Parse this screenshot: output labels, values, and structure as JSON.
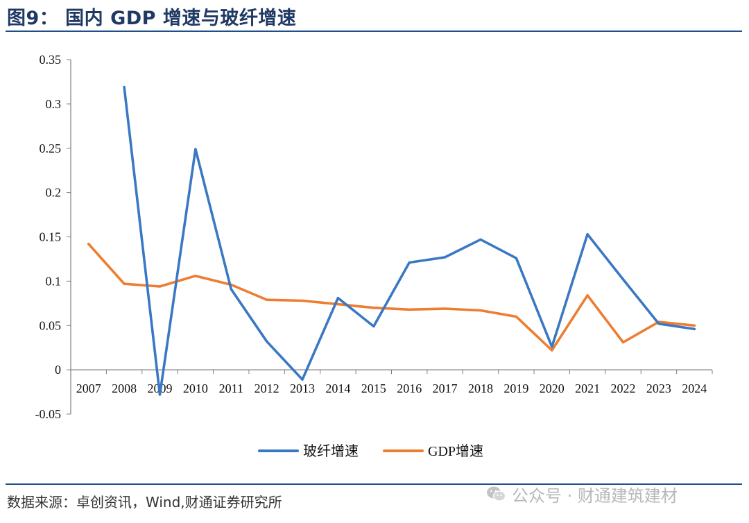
{
  "header": {
    "title": "图9： 国内 GDP 增速与玻纤增速"
  },
  "footer": {
    "source": "数据来源：卓创资讯，Wind,财通证券研究所",
    "watermark": "公众号 · 财通建筑建材"
  },
  "colors": {
    "title": "#1f3864",
    "rule": "#1f4e8c",
    "series_blue": "#3a78c3",
    "series_orange": "#ed7d31"
  },
  "chart_data": {
    "type": "line",
    "title": "",
    "xlabel": "",
    "ylabel": "",
    "x": [
      "2007",
      "2008",
      "2009",
      "2010",
      "2011",
      "2012",
      "2013",
      "2014",
      "2015",
      "2016",
      "2017",
      "2018",
      "2019",
      "2020",
      "2021",
      "2022",
      "2023",
      "2024"
    ],
    "ylim": [
      -0.05,
      0.35
    ],
    "yticks": [
      "-0.05",
      "0",
      "0.05",
      "0.1",
      "0.15",
      "0.2",
      "0.25",
      "0.3",
      "0.35"
    ],
    "ytick_values": [
      -0.05,
      0,
      0.05,
      0.1,
      0.15,
      0.2,
      0.25,
      0.3,
      0.35
    ],
    "grid": false,
    "legend": "bottom-center",
    "series": [
      {
        "name": "玻纤增速",
        "color": "#3a78c3",
        "values": [
          null,
          0.319,
          -0.028,
          0.249,
          0.091,
          0.032,
          -0.011,
          0.081,
          0.049,
          0.121,
          0.127,
          0.147,
          0.126,
          0.026,
          0.153,
          0.102,
          0.052,
          0.046
        ]
      },
      {
        "name": "GDP增速",
        "color": "#ed7d31",
        "values": [
          0.142,
          0.097,
          0.094,
          0.106,
          0.096,
          0.079,
          0.078,
          0.074,
          0.07,
          0.068,
          0.069,
          0.067,
          0.06,
          0.022,
          0.084,
          0.031,
          0.054,
          0.05
        ]
      }
    ]
  }
}
